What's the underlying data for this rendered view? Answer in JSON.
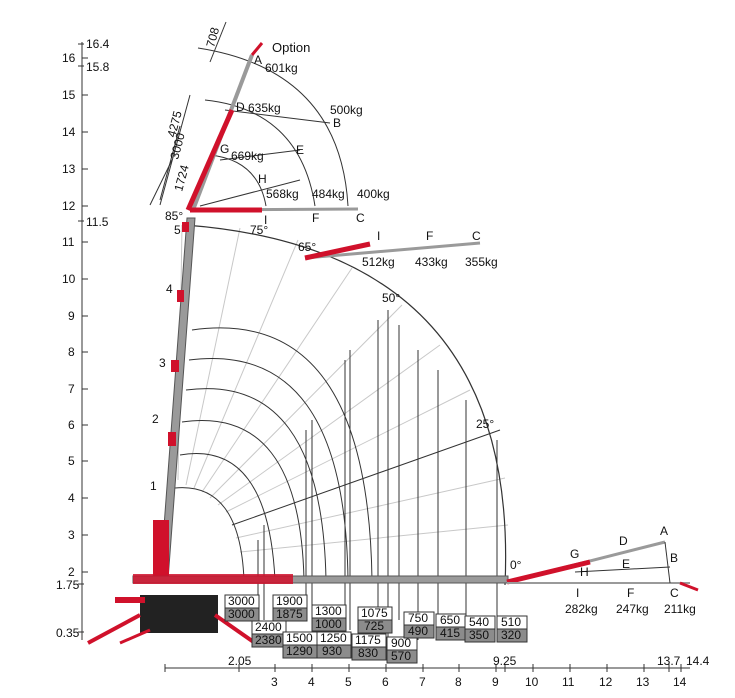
{
  "y_axis": {
    "ticks": [
      "2",
      "3",
      "4",
      "5",
      "6",
      "7",
      "8",
      "9",
      "10",
      "11",
      "12",
      "13",
      "14",
      "15",
      "16"
    ],
    "side_labels": [
      "16.4",
      "15.8",
      "11.5",
      "1.75",
      "0.35"
    ]
  },
  "x_axis": {
    "ticks": [
      "3",
      "4",
      "5",
      "6",
      "7",
      "8",
      "9",
      "10",
      "11",
      "12",
      "13",
      "14"
    ],
    "special_labels": [
      "2.05",
      "9.25",
      "13.7",
      "14.4"
    ]
  },
  "boom_labels": {
    "dims": [
      "708",
      "4275",
      "3000",
      "1724"
    ],
    "option": "Option",
    "section_numbers": [
      "1",
      "2",
      "3",
      "4",
      "5"
    ]
  },
  "angles": [
    "85°",
    "75°",
    "65°",
    "50°",
    "25°",
    "0°"
  ],
  "jib_85": {
    "points": [
      "A",
      "D",
      "G",
      "H",
      "I",
      "E",
      "B",
      "F",
      "C"
    ],
    "loads": [
      "601kg",
      "635kg",
      "669kg",
      "500kg",
      "568kg",
      "484kg",
      "400kg"
    ]
  },
  "jib_65": {
    "points": [
      "I",
      "F",
      "C"
    ],
    "loads": [
      "512kg",
      "433kg",
      "355kg"
    ]
  },
  "jib_0": {
    "points": [
      "A",
      "D",
      "G",
      "H",
      "B",
      "E",
      "I",
      "F",
      "C"
    ],
    "loads": [
      "282kg",
      "247kg",
      "211kg"
    ]
  },
  "capacity_boxes": [
    {
      "top": "3000",
      "bottom": "3000"
    },
    {
      "top": "2400",
      "bottom": "2380"
    },
    {
      "top": "1900",
      "bottom": "1875"
    },
    {
      "top": "1500",
      "bottom": "1290"
    },
    {
      "top": "1300",
      "bottom": "1000"
    },
    {
      "top": "1250",
      "bottom": "930"
    },
    {
      "top": "1075",
      "bottom": "725"
    },
    {
      "top": "1175",
      "bottom": "830"
    },
    {
      "top": "900",
      "bottom": "570"
    },
    {
      "top": "750",
      "bottom": "490"
    },
    {
      "top": "650",
      "bottom": "415"
    },
    {
      "top": "540",
      "bottom": "350"
    },
    {
      "top": "510",
      "bottom": "320"
    }
  ],
  "colors": {
    "crane_red": "#d0112b",
    "boom_gray": "#9a9a9a",
    "grid": "#bdbdbd",
    "dark_grid": "#333333",
    "box_gray": "#8c8c8c"
  }
}
